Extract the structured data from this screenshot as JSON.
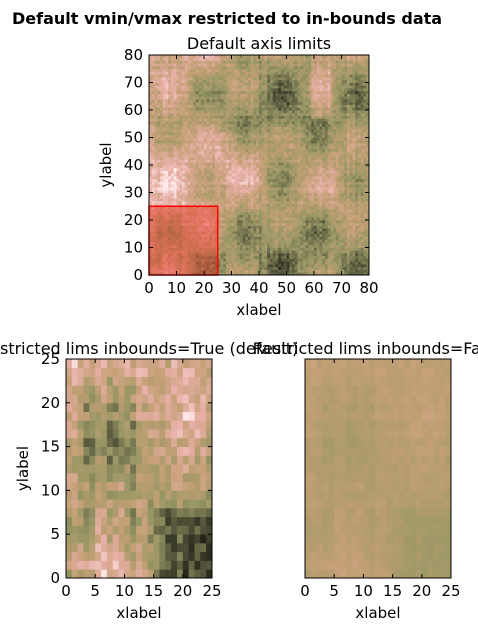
{
  "figure": {
    "suptitle": "Default vmin/vmax restricted to in-bounds data"
  },
  "chart_data": [
    {
      "type": "heatmap",
      "title": "Default axis limits",
      "xlabel": "xlabel",
      "ylabel": "ylabel",
      "xlim": [
        0,
        80
      ],
      "ylim": [
        0,
        80
      ],
      "xticks": [
        0,
        10,
        20,
        30,
        40,
        50,
        60,
        70,
        80
      ],
      "yticks": [
        0,
        10,
        20,
        30,
        40,
        50,
        60,
        70,
        80
      ],
      "grid": false,
      "colormap": "pink-olive",
      "annotation": {
        "shape": "rectangle",
        "x": [
          0,
          25
        ],
        "y": [
          0,
          25
        ],
        "color": "#ff0000",
        "fill_alpha": 0.5
      }
    },
    {
      "type": "heatmap",
      "title": "Restricted lims inbounds=True (default)",
      "xlabel": "xlabel",
      "ylabel": "ylabel",
      "xlim": [
        0,
        25
      ],
      "ylim": [
        0,
        25
      ],
      "xticks": [
        0,
        5,
        10,
        15,
        20,
        25
      ],
      "yticks": [
        0,
        5,
        10,
        15,
        20,
        25
      ],
      "grid": false,
      "colormap": "pink-olive"
    },
    {
      "type": "heatmap",
      "title": "Restricted lims inbounds=False",
      "xlabel": "xlabel",
      "ylabel": "",
      "xlim": [
        0,
        25
      ],
      "ylim": [
        0,
        25
      ],
      "xticks": [
        0,
        5,
        10,
        15,
        20,
        25
      ],
      "yticks": [],
      "grid": false,
      "colormap": "pink-olive"
    }
  ]
}
